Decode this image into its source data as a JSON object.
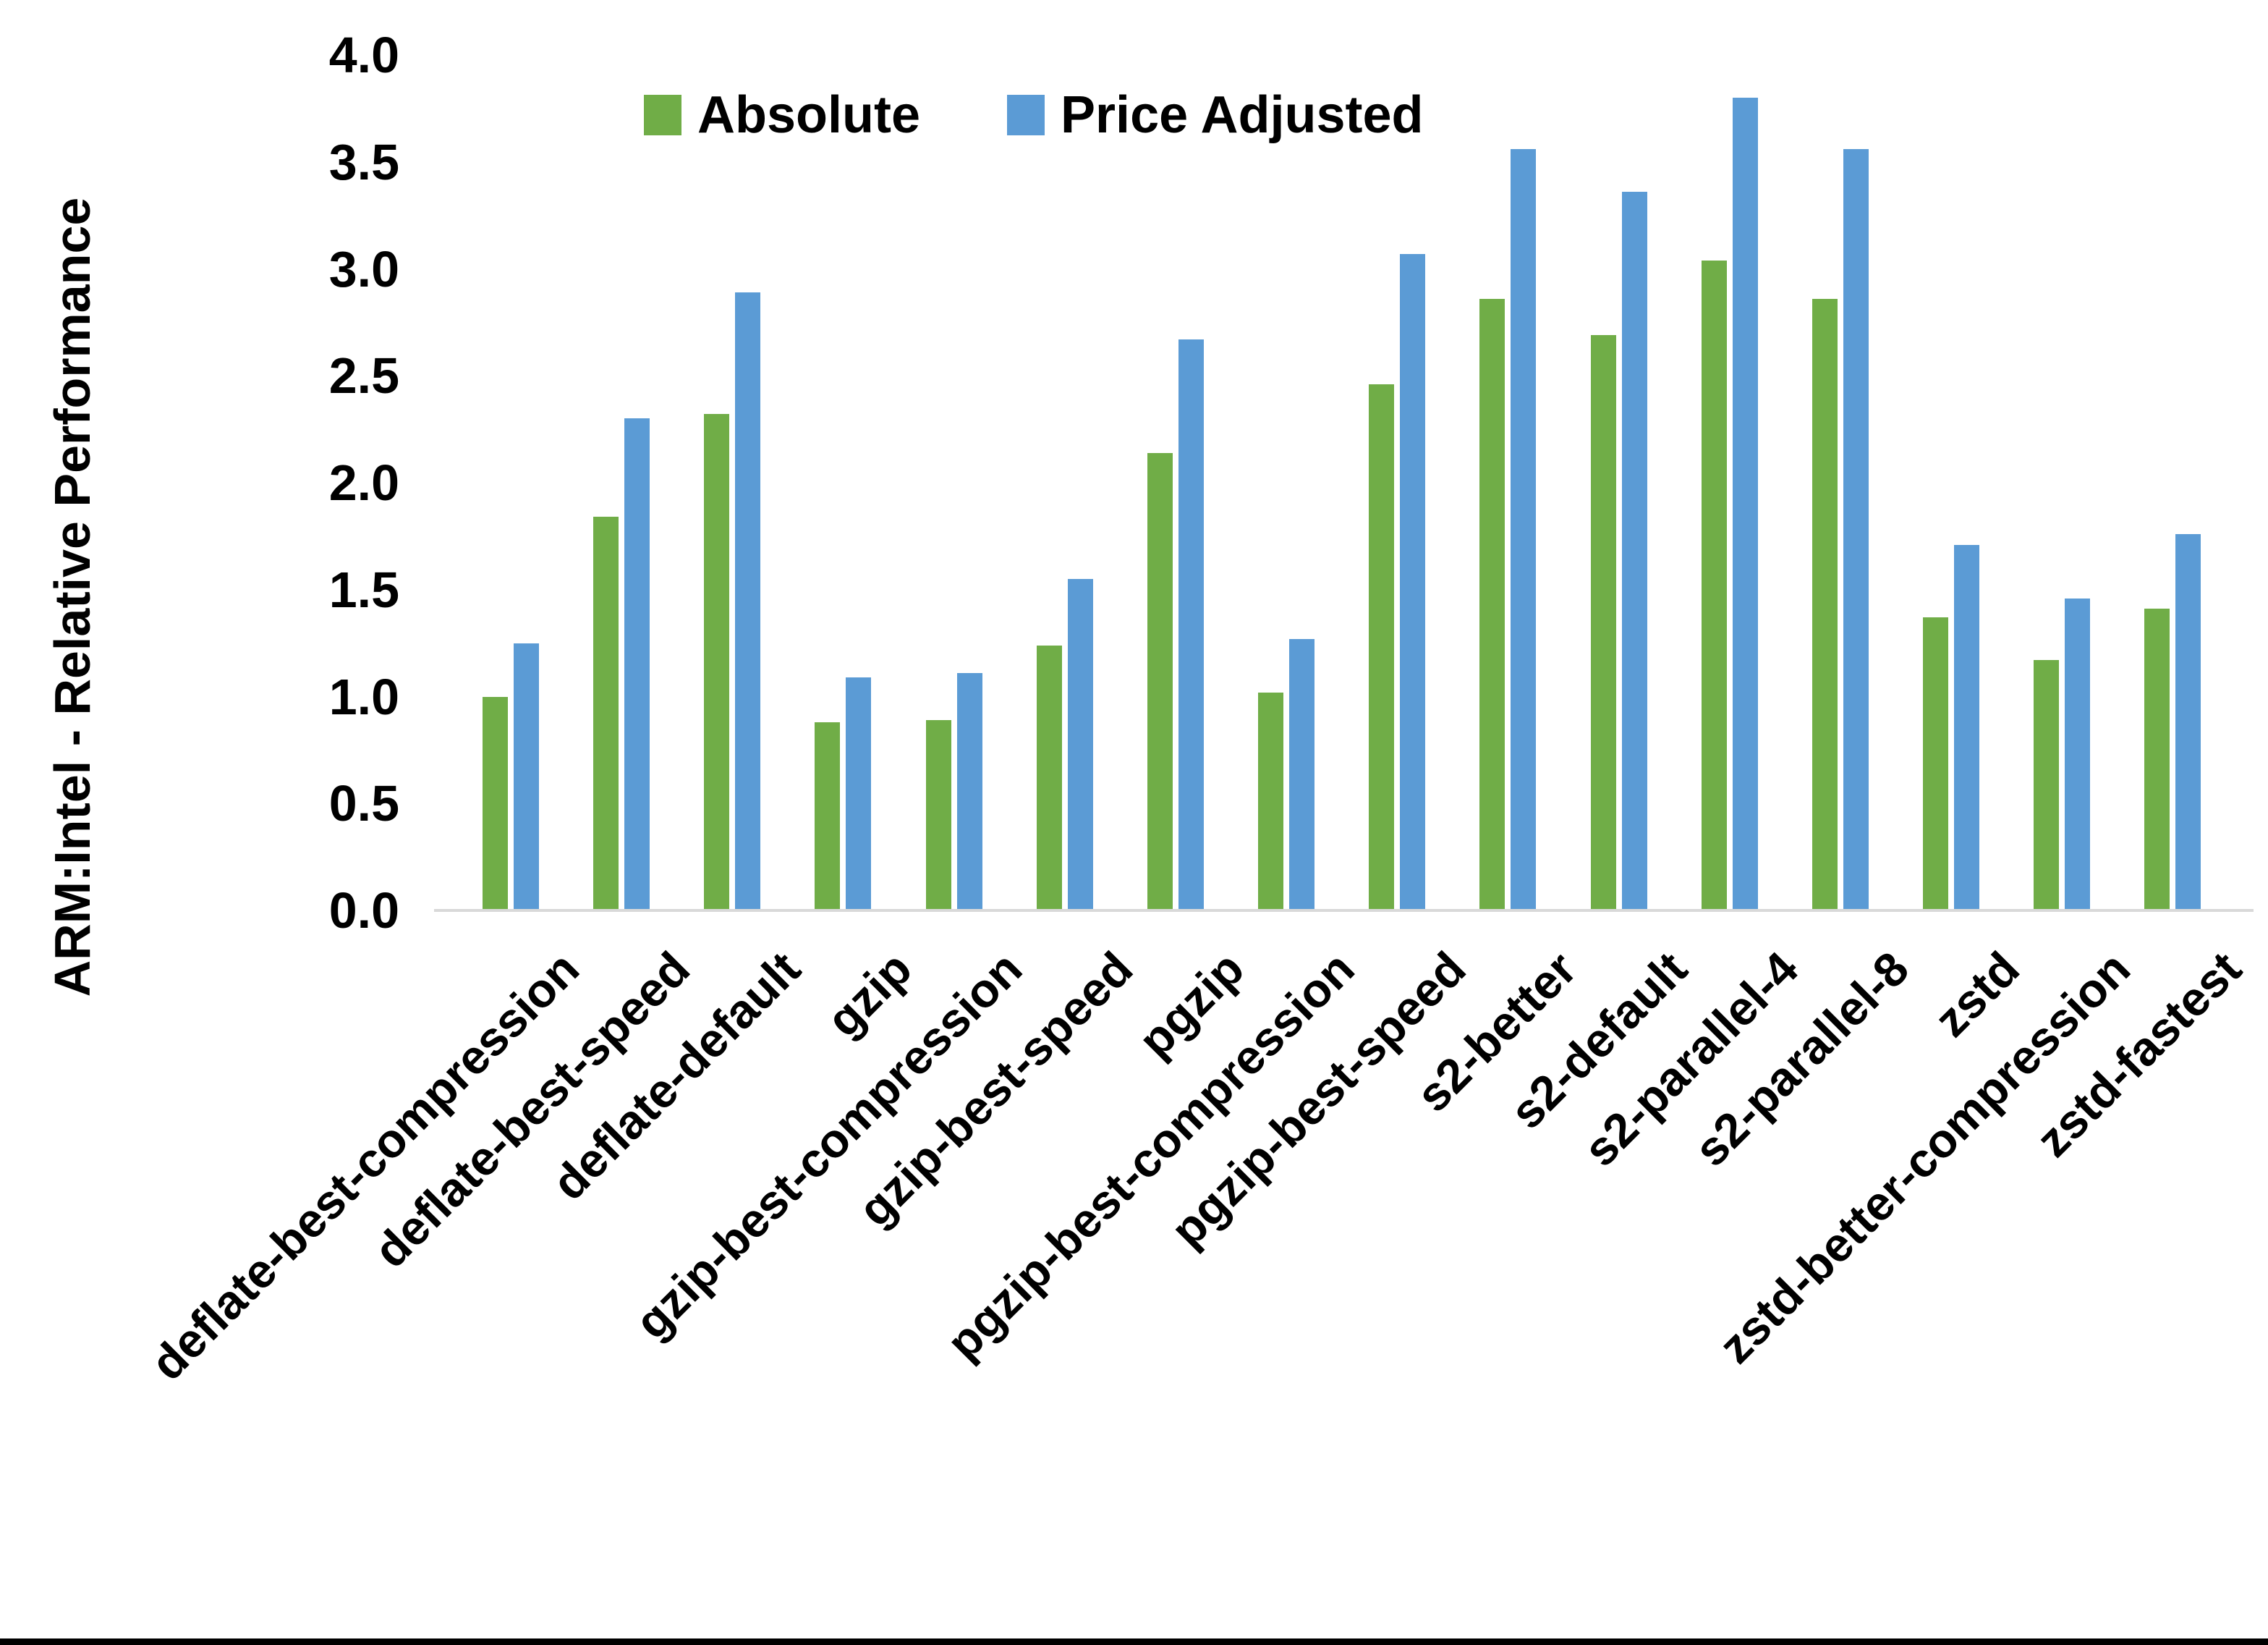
{
  "chart_data": {
    "type": "bar",
    "title": "",
    "ylabel": "ARM:Intel - Relative Performance",
    "xlabel": "",
    "ylim": [
      0.0,
      4.0
    ],
    "y_ticks": [
      "0.0",
      "0.5",
      "1.0",
      "1.5",
      "2.0",
      "2.5",
      "3.0",
      "3.5",
      "4.0"
    ],
    "grid": "off",
    "legend_position": "top-center",
    "categories": [
      "deflate-best-compression",
      "deflate-best-speed",
      "deflate-default",
      "gzip",
      "gzip-best-compression",
      "gzip-best-speed",
      "pgzip",
      "pgzip-best-compression",
      "pgzip-best-speed",
      "s2-better",
      "s2-default",
      "s2-parallel-4",
      "s2-parallel-8",
      "zstd",
      "zstd-better-compression",
      "zstd-fastest"
    ],
    "series": [
      {
        "name": "Absolute",
        "color": "#70AD47",
        "values": [
          1.0,
          1.84,
          2.32,
          0.88,
          0.89,
          1.24,
          2.14,
          1.02,
          2.46,
          2.86,
          2.69,
          3.04,
          2.86,
          1.37,
          1.17,
          1.41
        ]
      },
      {
        "name": "Price Adjusted",
        "color": "#5B9BD5",
        "values": [
          1.25,
          2.3,
          2.89,
          1.09,
          1.11,
          1.55,
          2.67,
          1.27,
          3.07,
          3.56,
          3.36,
          3.8,
          3.56,
          1.71,
          1.46,
          1.76
        ]
      }
    ]
  },
  "legend": {
    "absolute_label": "Absolute",
    "price_adjusted_label": "Price Adjusted"
  }
}
